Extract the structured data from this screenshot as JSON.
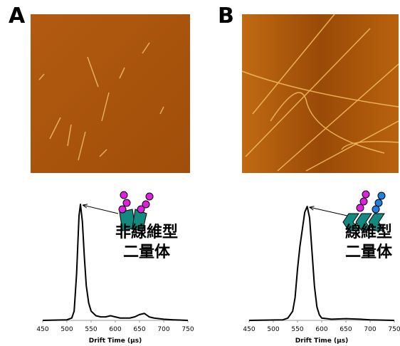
{
  "chart_data": [
    {
      "type": "line",
      "panel_label": "A",
      "annotation_lines": [
        "非線維型",
        "二量体"
      ],
      "x_label": "Drift Time (μs)",
      "x": [
        450,
        500,
        510,
        515,
        520,
        525,
        528,
        532,
        536,
        540,
        545,
        550,
        560,
        570,
        580,
        590,
        600,
        610,
        620,
        630,
        640,
        650,
        660,
        670,
        680,
        700,
        720,
        750
      ],
      "values": [
        0,
        0.5,
        2,
        8,
        40,
        90,
        100,
        85,
        55,
        30,
        15,
        8,
        4,
        3,
        3,
        4,
        3,
        2,
        2,
        2,
        3,
        5,
        6,
        3,
        2,
        1,
        0.5,
        0
      ],
      "color": "#000000",
      "xlim": [
        450,
        750
      ],
      "xticks": [
        450,
        500,
        550,
        600,
        650,
        700,
        750
      ],
      "ylim": [
        0,
        100
      ]
    },
    {
      "type": "line",
      "panel_label": "B",
      "annotation_lines": [
        "線維型",
        "二量体"
      ],
      "x_label": "Drift Time (μs)",
      "x": [
        450,
        520,
        530,
        540,
        545,
        550,
        555,
        560,
        565,
        570,
        575,
        580,
        585,
        590,
        595,
        600,
        620,
        650,
        680,
        700,
        750
      ],
      "values": [
        0,
        0.5,
        2,
        8,
        20,
        45,
        65,
        80,
        95,
        100,
        90,
        60,
        30,
        12,
        5,
        2,
        1,
        1.5,
        1,
        0.5,
        0
      ],
      "color": "#000000",
      "xlim": [
        450,
        750
      ],
      "xticks": [
        450,
        500,
        550,
        600,
        650,
        700,
        750
      ],
      "ylim": [
        0,
        100
      ]
    }
  ]
}
